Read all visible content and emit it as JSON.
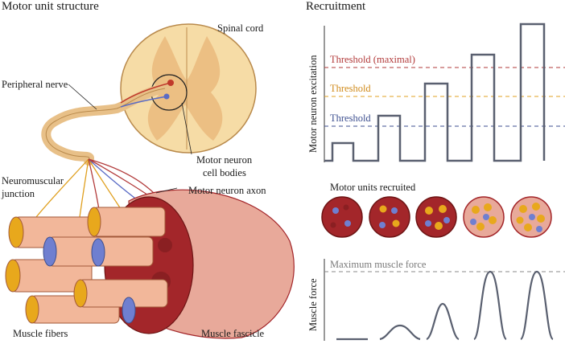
{
  "left": {
    "title": "Motor unit structure",
    "spinal_cord": "Spinal cord",
    "peripheral_nerve": "Peripheral nerve",
    "neuromuscular_junction_line1": "Neuromuscular",
    "neuromuscular_junction_line2": "junction",
    "motor_neuron_cell_bodies_line1": "Motor neuron",
    "motor_neuron_cell_bodies_line2": "cell bodies",
    "motor_neuron_axon": "Motor neuron axon",
    "muscle_fibers": "Muscle fibers",
    "muscle_fascicle": "Muscle fascicle"
  },
  "right": {
    "title": "Recruitment",
    "excitation_axis": "Motor neuron excitation",
    "threshold_maximal": "Threshold (maximal)",
    "threshold_mid": "Threshold",
    "threshold_low": "Threshold",
    "units_recruited": "Motor units recruited",
    "max_force": "Maximum muscle force",
    "force_axis": "Muscle force"
  },
  "colors": {
    "threshold_maximal": "#b23a3a",
    "threshold_mid": "#d08a1a",
    "threshold_low": "#3d4f8f",
    "steps": "#5a6070",
    "muscle": "#a3262a",
    "fiber_fill": "#f2b79a",
    "orange_unit": "#e8a81c",
    "blue_unit": "#6f7fd0"
  },
  "steps": [
    1,
    2,
    3,
    4,
    5
  ]
}
